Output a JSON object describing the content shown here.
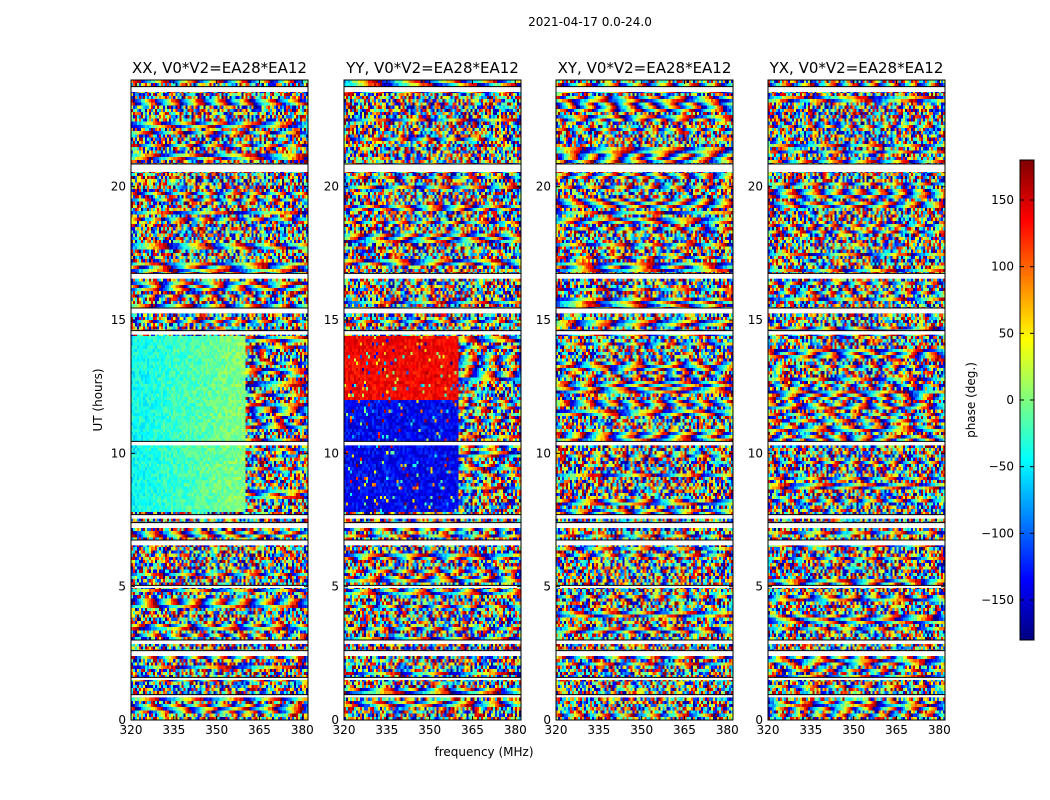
{
  "suptitle": "2021-04-17 0.0-24.0",
  "chart_data": {
    "type": "heatmap",
    "xlabel": "frequency (MHz)",
    "ylabel": "UT (hours)",
    "xlim": [
      320,
      382
    ],
    "ylim": [
      0,
      24
    ],
    "xticks": [
      "320",
      "335",
      "350",
      "365",
      "380"
    ],
    "yticks": [
      "0",
      "5",
      "10",
      "15",
      "20"
    ],
    "colorbar": {
      "label": "phase (deg.)",
      "range": [
        -180,
        180
      ],
      "ticks": [
        "150",
        "100",
        "50",
        "0",
        "−50",
        "−100",
        "−150"
      ],
      "colormap": [
        "#00007f",
        "#0000ff",
        "#007fff",
        "#00ffff",
        "#7fff7f",
        "#ffff00",
        "#ff7f00",
        "#ff0000",
        "#7f0000"
      ]
    },
    "panels": [
      {
        "title": "XX, V0*V2=EA28*EA12",
        "pattern": "xx"
      },
      {
        "title": "YY, V0*V2=EA28*EA12",
        "pattern": "yy"
      },
      {
        "title": "XY, V0*V2=EA28*EA12",
        "pattern": "noise"
      },
      {
        "title": "YX, V0*V2=EA28*EA12",
        "pattern": "noise"
      }
    ],
    "flagged_ut_hours": [
      [
        23.55,
        23.75
      ],
      [
        20.55,
        20.85
      ],
      [
        16.55,
        16.75
      ],
      [
        15.25,
        15.45
      ],
      [
        14.45,
        14.6
      ],
      [
        10.3,
        10.45
      ],
      [
        7.55,
        7.7
      ],
      [
        7.2,
        7.4
      ],
      [
        6.55,
        6.75
      ],
      [
        4.95,
        5.05
      ],
      [
        2.85,
        3.0
      ],
      [
        2.4,
        2.6
      ],
      [
        1.5,
        1.6
      ],
      [
        0.85,
        0.95
      ]
    ]
  }
}
